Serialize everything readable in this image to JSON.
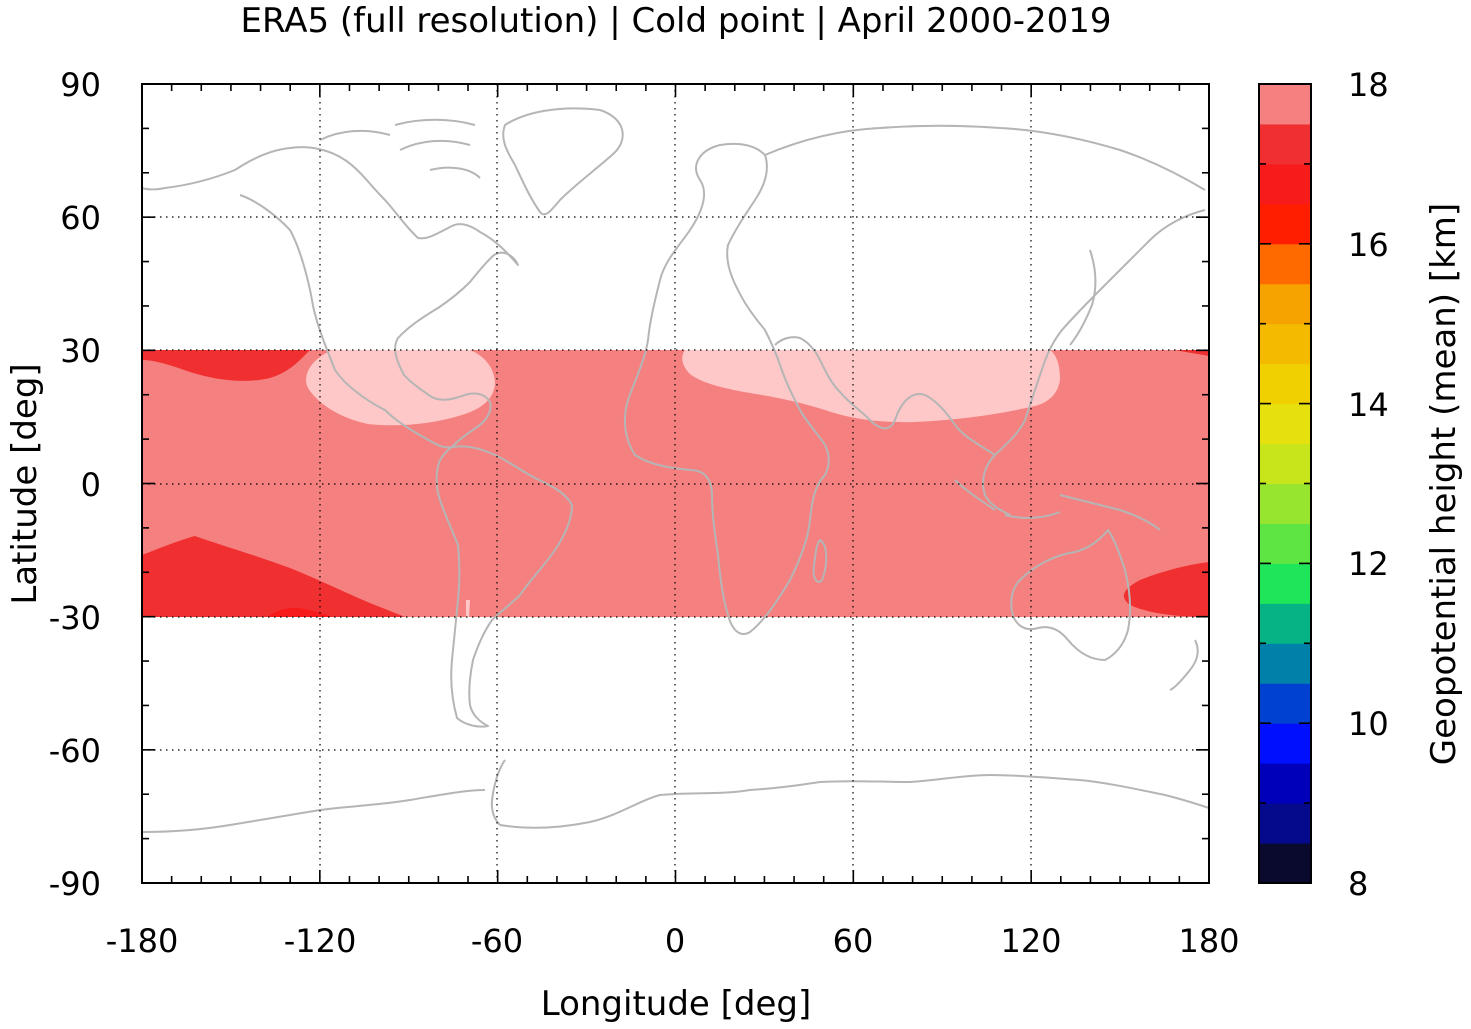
{
  "title": "ERA5 (full resolution) | Cold point | April 2000-2019",
  "chart_data": {
    "type": "heatmap",
    "title": "ERA5 (full resolution) | Cold point | April 2000-2019",
    "xlabel": "Longitude [deg]",
    "ylabel": "Latitude [deg]",
    "xlim": [
      -180,
      180
    ],
    "ylim": [
      -90,
      90
    ],
    "x_ticks": [
      "-180",
      "-120",
      "-60",
      "0",
      "60",
      "120",
      "180"
    ],
    "y_ticks": [
      "90",
      "60",
      "30",
      "0",
      "-30",
      "-60",
      "-90"
    ],
    "grid": true,
    "data_extent": {
      "lon": [
        -180,
        180
      ],
      "lat": [
        -30,
        30
      ]
    },
    "colorbar": {
      "label": "Geopotential height (mean) [km]",
      "range": [
        8,
        18
      ],
      "step": 0.5,
      "ticks": [
        "18",
        "16",
        "14",
        "12",
        "10",
        "8"
      ],
      "colors": [
        "#0a0a2e",
        "#050a8c",
        "#0000ba",
        "#0010ff",
        "#0041d1",
        "#0081a9",
        "#05b385",
        "#1ee55a",
        "#5ee543",
        "#97e52f",
        "#c8e51b",
        "#e6e00e",
        "#f0d000",
        "#f4ba00",
        "#f6a300",
        "#ff6a00",
        "#ff1e00",
        "#f81b1b",
        "#f03030",
        "#f58080",
        "#ffc8c8"
      ]
    },
    "field_levels_km": {
      "background": 17.25,
      "northern_subtropical_highs": 17.75,
      "southern_and_northern_pacific_lows": 16.75,
      "small_patches": 16.25
    }
  },
  "colors": {
    "coastline": "#b5b5b5",
    "level_17_75": "#ffc8c8",
    "level_17_25": "#f58080",
    "level_16_75": "#f03030",
    "level_16_25": "#f81b1b"
  }
}
